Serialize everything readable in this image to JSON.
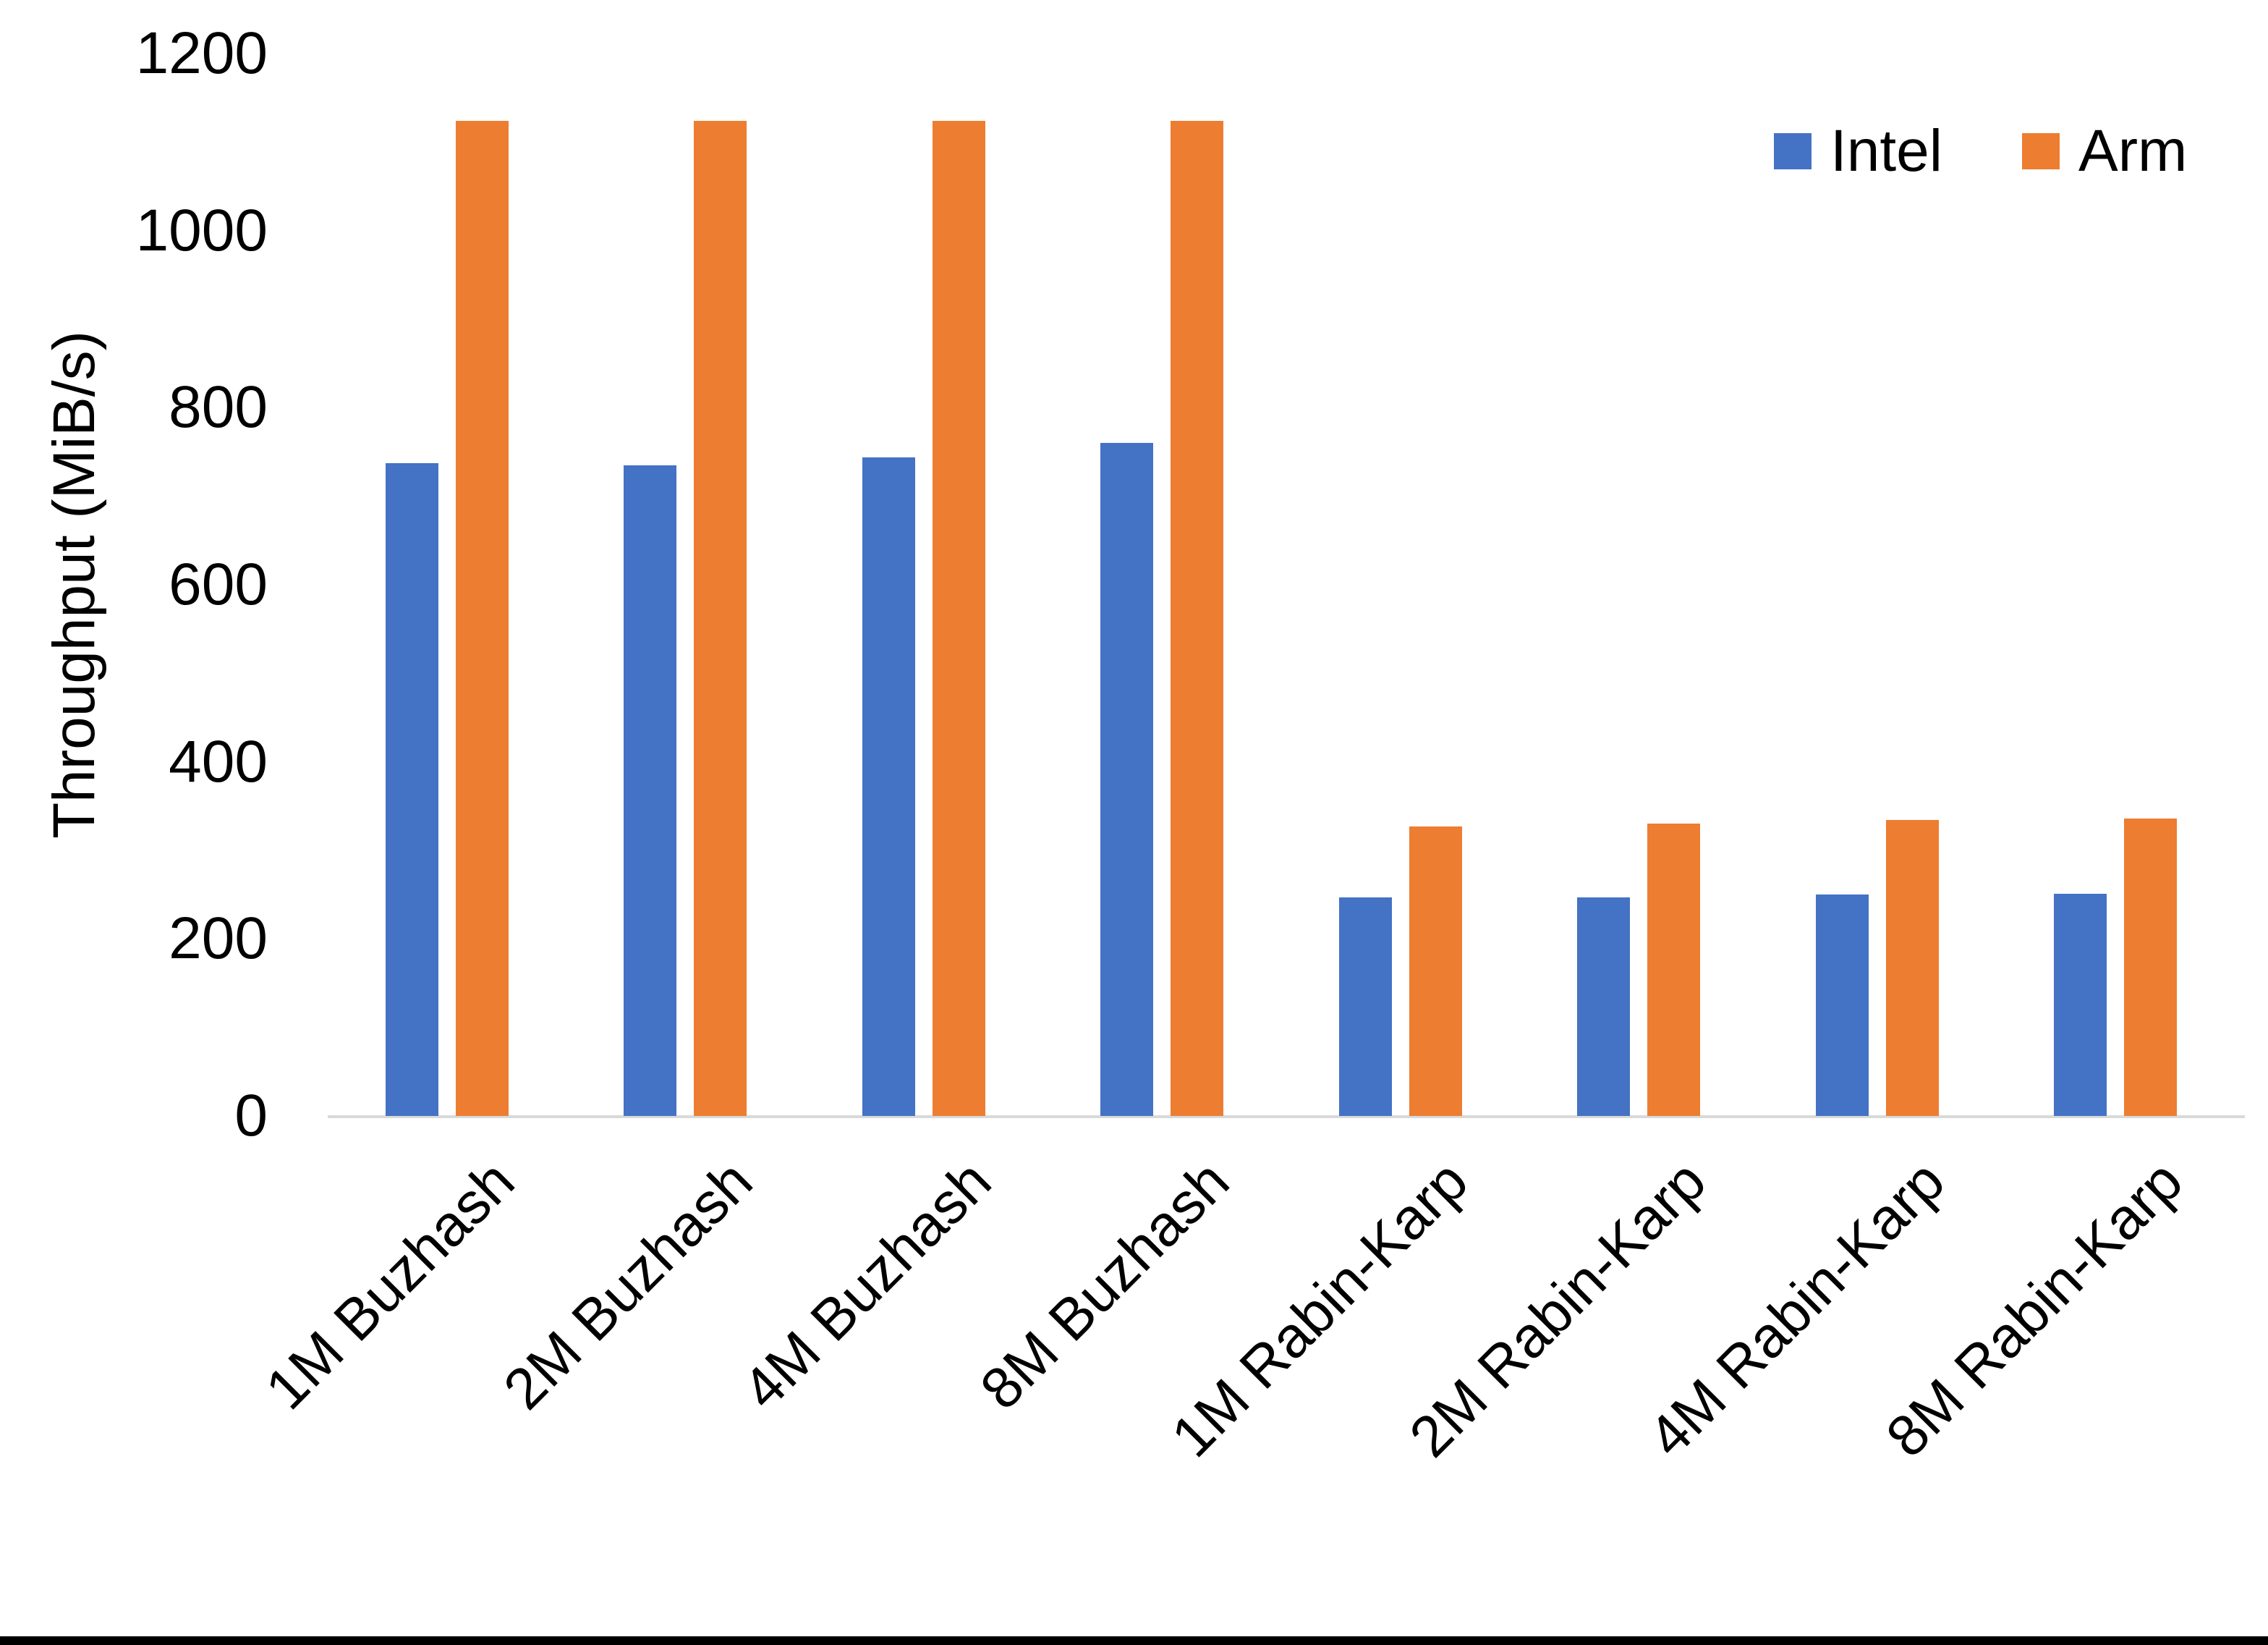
{
  "page": {
    "background": "#FFFFFF",
    "bottom_bar_color": "#000000",
    "text_color": "#000000"
  },
  "chart_data": {
    "type": "bar",
    "title": "",
    "ylabel": "Throughput (MiB/s)",
    "xlabel": "",
    "ylim": [
      0,
      1200
    ],
    "ytick_step": 200,
    "ytick_labels": [
      "1200",
      "1000",
      "800",
      "600",
      "400",
      "200",
      "0"
    ],
    "grid": false,
    "legend_position": "top-right",
    "axis_line_color": "#D9D9D9",
    "categories": [
      "1M Buzhash",
      "2M Buzhash",
      "4M Buzhash",
      "8M Buzhash",
      "1M Rabin-Karp",
      "2M Rabin-Karp",
      "4M Rabin-Karp",
      "8M Rabin-Karp"
    ],
    "series": [
      {
        "name": "Intel",
        "color": "#4472C4",
        "values": [
          737,
          735,
          744,
          760,
          247,
          247,
          250,
          251
        ]
      },
      {
        "name": "Arm",
        "color": "#ED7D31",
        "values": [
          1124,
          1124,
          1124,
          1124,
          327,
          330,
          334,
          336
        ]
      }
    ]
  }
}
